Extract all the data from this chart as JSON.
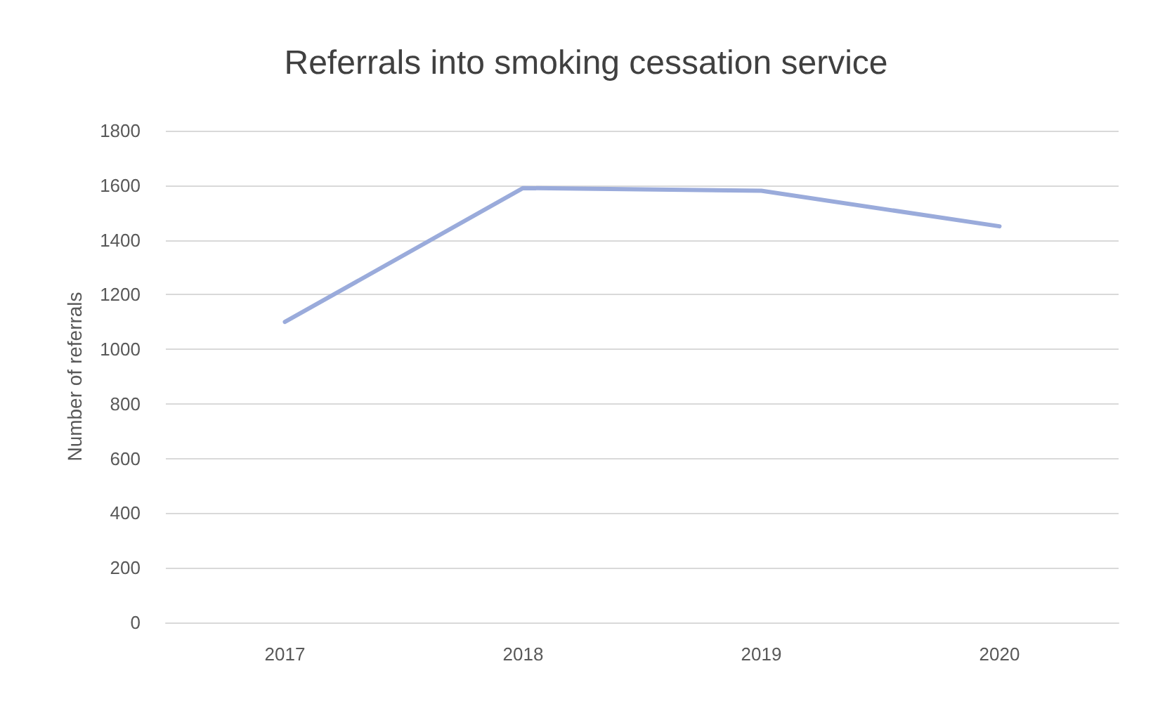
{
  "chart_data": {
    "type": "line",
    "title": "Referrals into smoking cessation service",
    "ylabel": "Number of referrals",
    "categories": [
      "2017",
      "2018",
      "2019",
      "2020"
    ],
    "series": [
      {
        "color": "#9aabdb",
        "values": [
          1100,
          1590,
          1580,
          1450
        ]
      }
    ],
    "ylim": [
      0,
      1800
    ],
    "yticks": [
      0,
      200,
      400,
      600,
      800,
      1000,
      1200,
      1400,
      1600,
      1800
    ],
    "grid": "y",
    "marker": "none",
    "line_style": "solid"
  }
}
